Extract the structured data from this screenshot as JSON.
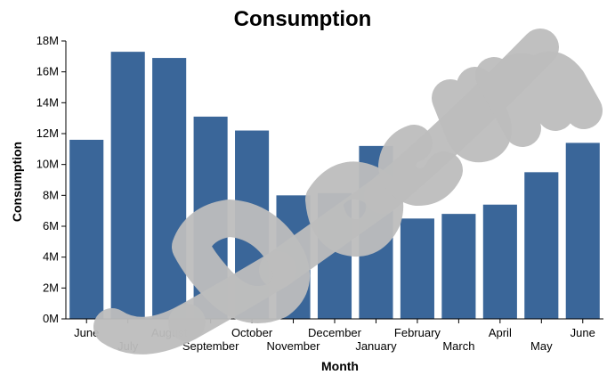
{
  "chart_data": {
    "type": "bar",
    "title": "Consumption",
    "xlabel": "Month",
    "ylabel": "Consumption",
    "categories": [
      "June",
      "July",
      "August",
      "September",
      "October",
      "November",
      "December",
      "January",
      "February",
      "March",
      "April",
      "May",
      "June"
    ],
    "values": [
      11.6,
      17.3,
      16.9,
      13.1,
      12.2,
      8.0,
      8.15,
      11.2,
      6.5,
      6.8,
      7.4,
      9.5,
      11.4
    ],
    "ylim": [
      0,
      18
    ],
    "yticks": [
      0,
      2,
      4,
      6,
      8,
      10,
      12,
      14,
      16,
      18
    ],
    "ytick_labels": [
      "0M",
      "2M",
      "4M",
      "6M",
      "8M",
      "10M",
      "12M",
      "14M",
      "16M",
      "18M"
    ],
    "grid": false,
    "colors": {
      "bar": "#3a6699",
      "axis": "#000000",
      "watermark": "#bdbdbd"
    }
  }
}
